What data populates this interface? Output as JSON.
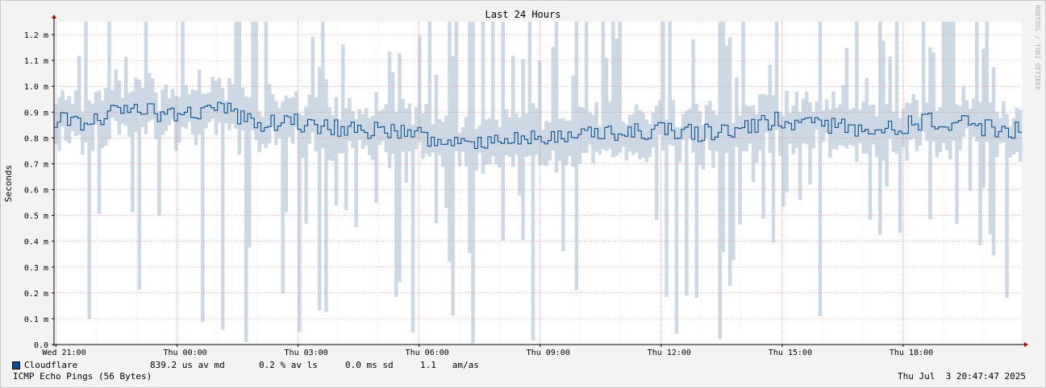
{
  "chart_data": {
    "type": "line",
    "title": "Last 24 Hours",
    "ylabel": "Seconds",
    "watermark": "RRDTOOL / TOBI OETIKER",
    "y_ticks": [
      "0.0",
      "0.1 m",
      "0.2 m",
      "0.3 m",
      "0.4 m",
      "0.5 m",
      "0.6 m",
      "0.7 m",
      "0.8 m",
      "0.9 m",
      "1.0 m",
      "1.1 m",
      "1.2 m"
    ],
    "ylim": [
      0,
      1.25
    ],
    "x_ticks": [
      {
        "label": "Wed 21:00",
        "h": 0
      },
      {
        "label": "Thu 00:00",
        "h": 3
      },
      {
        "label": "Thu 03:00",
        "h": 6
      },
      {
        "label": "Thu 06:00",
        "h": 9
      },
      {
        "label": "Thu 09:00",
        "h": 12
      },
      {
        "label": "Thu 12:00",
        "h": 15
      },
      {
        "label": "Thu 15:00",
        "h": 18
      },
      {
        "label": "Thu 18:00",
        "h": 21
      }
    ],
    "x_range_hours": [
      -0.05,
      23.94
    ],
    "series": [
      {
        "name": "Cloudflare",
        "color": "#0b4f8a",
        "trend_keypoints": [
          [
            0.0,
            0.89
          ],
          [
            0.5,
            0.85
          ],
          [
            1.0,
            0.88
          ],
          [
            1.5,
            0.9
          ],
          [
            2.0,
            0.93
          ],
          [
            2.5,
            0.89
          ],
          [
            3.0,
            0.88
          ],
          [
            3.5,
            0.9
          ],
          [
            4.0,
            0.93
          ],
          [
            4.5,
            0.88
          ],
          [
            5.0,
            0.86
          ],
          [
            6.0,
            0.86
          ],
          [
            7.0,
            0.84
          ],
          [
            8.0,
            0.83
          ],
          [
            9.0,
            0.81
          ],
          [
            10.0,
            0.78
          ],
          [
            11.0,
            0.8
          ],
          [
            12.0,
            0.8
          ],
          [
            13.0,
            0.81
          ],
          [
            14.0,
            0.82
          ],
          [
            15.0,
            0.83
          ],
          [
            16.0,
            0.82
          ],
          [
            17.0,
            0.84
          ],
          [
            18.0,
            0.87
          ],
          [
            19.0,
            0.85
          ],
          [
            20.0,
            0.84
          ],
          [
            21.0,
            0.85
          ],
          [
            22.0,
            0.87
          ],
          [
            23.0,
            0.84
          ],
          [
            23.94,
            0.83
          ]
        ]
      }
    ],
    "legend": {
      "name": "Cloudflare",
      "median": "839.2 us av md",
      "loss": "0.2 % av ls",
      "sd": "0.0 ms sd",
      "ratio": "1.1   am/as"
    },
    "footer_left": "ICMP Echo Pings (56 Bytes)",
    "footer_right": "Thu Jul  3 20:47:47 2025",
    "colors": {
      "background": "#f3f3f3",
      "canvas": "#ffffff",
      "grid": "#e08080",
      "smoke": "#ccd8e4",
      "line": "#0b4f8a",
      "axis": "#000000",
      "arrow": "#aa0000"
    }
  }
}
